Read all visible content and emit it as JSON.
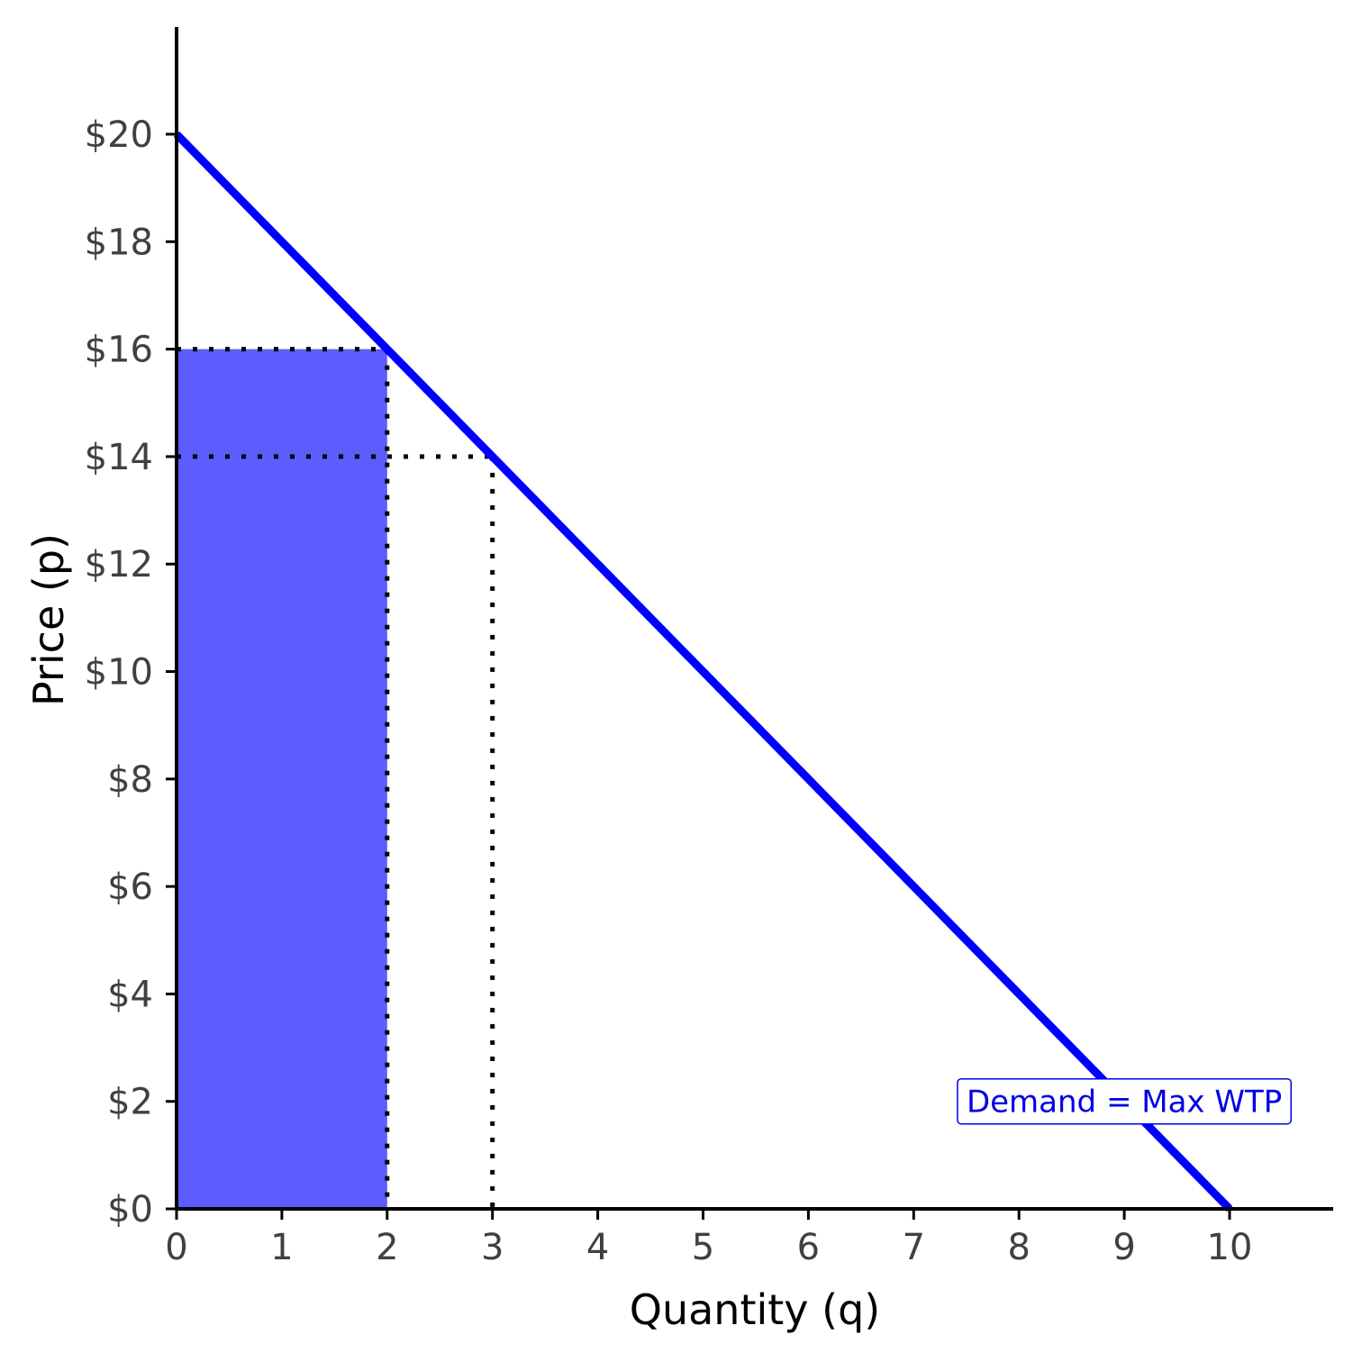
{
  "chart_data": {
    "type": "line",
    "xlabel": "Quantity (q)",
    "ylabel": "Price (p)",
    "xlim": [
      0,
      11
    ],
    "ylim": [
      0,
      22
    ],
    "x_ticks": [
      0,
      1,
      2,
      3,
      4,
      5,
      6,
      7,
      8,
      9,
      10
    ],
    "x_tick_labels": [
      "0",
      "1",
      "2",
      "3",
      "4",
      "5",
      "6",
      "7",
      "8",
      "9",
      "10"
    ],
    "y_ticks": [
      0,
      2,
      4,
      6,
      8,
      10,
      12,
      14,
      16,
      18,
      20
    ],
    "y_tick_labels": [
      "$0",
      "$2",
      "$4",
      "$6",
      "$8",
      "$10",
      "$12",
      "$14",
      "$16",
      "$18",
      "$20"
    ],
    "grid": false,
    "series": [
      {
        "x": [
          0,
          10
        ],
        "y": [
          20,
          0
        ],
        "color": "#0000ff"
      }
    ],
    "shaded_area": {
      "x": [
        0,
        2
      ],
      "y": [
        0,
        16
      ],
      "color": "#5c5cff"
    },
    "reference_lines": [
      {
        "from": [
          0,
          16
        ],
        "to": [
          2,
          16
        ]
      },
      {
        "from": [
          2,
          16
        ],
        "to": [
          2,
          0
        ]
      },
      {
        "from": [
          0,
          14
        ],
        "to": [
          3,
          14
        ]
      },
      {
        "from": [
          3,
          14
        ],
        "to": [
          3,
          0
        ]
      }
    ],
    "annotation": {
      "text": "Demand = Max WTP",
      "x": 9,
      "y": 2,
      "color": "#0000e6"
    }
  }
}
